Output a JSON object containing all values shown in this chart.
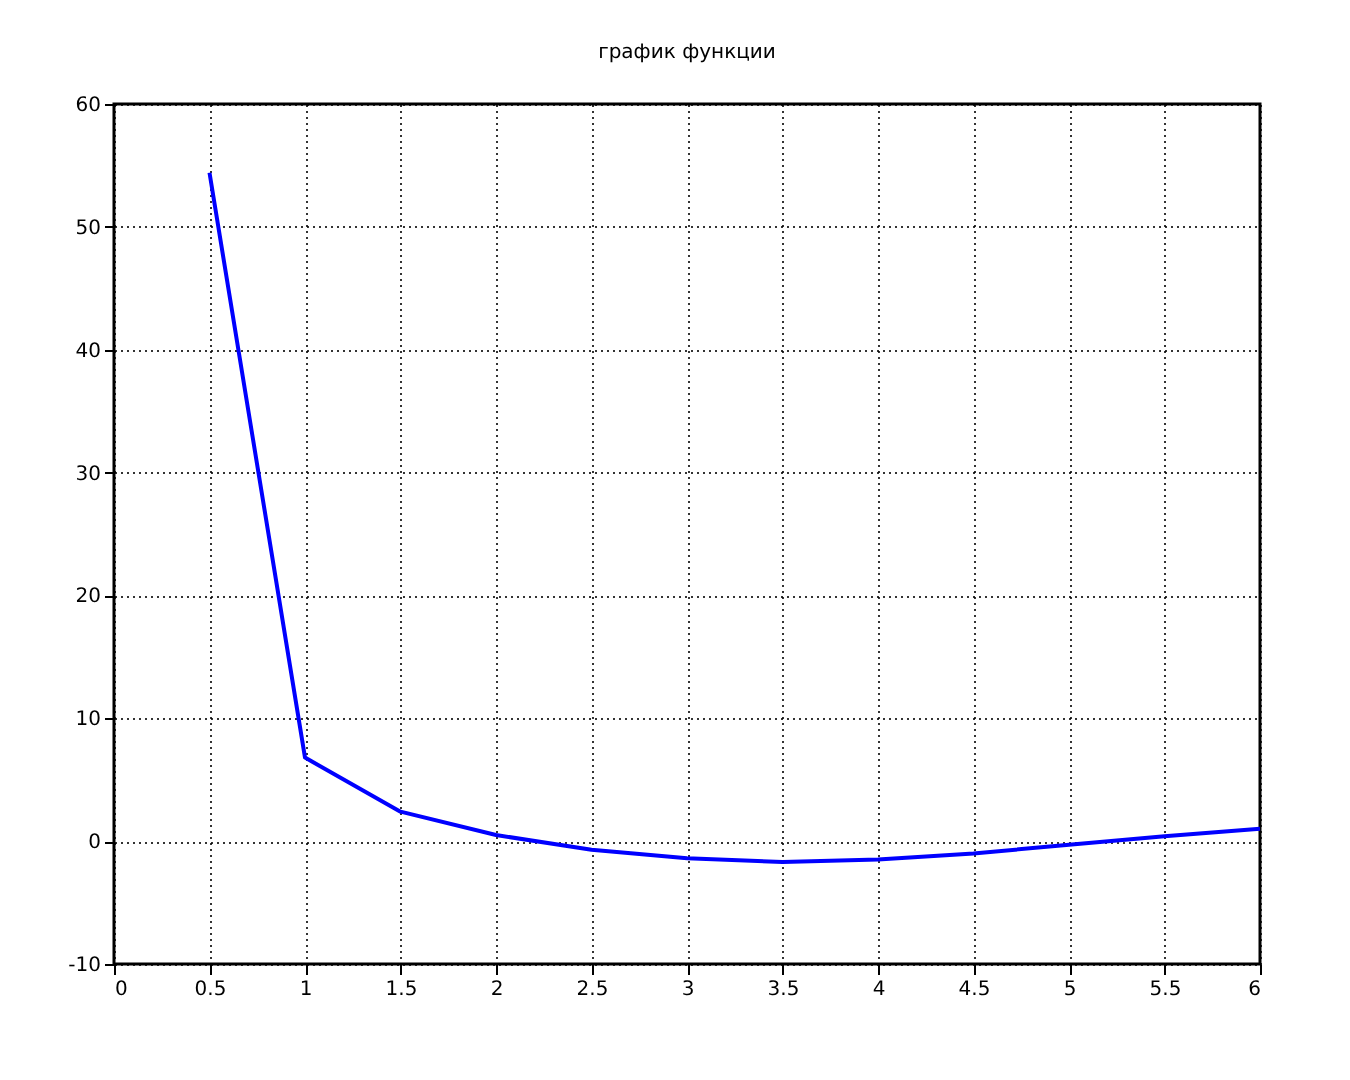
{
  "chart_data": {
    "type": "line",
    "title": "график функции",
    "x": [
      0.5,
      1,
      1.5,
      2,
      2.5,
      3,
      3.5,
      4,
      4.5,
      5,
      5.5,
      6
    ],
    "series": [
      {
        "color": "#0000ff",
        "values": [
          54.4,
          6.8,
          2.4,
          0.5,
          -0.7,
          -1.4,
          -1.7,
          -1.5,
          -1.0,
          -0.3,
          0.4,
          1.0
        ]
      }
    ],
    "xlim": [
      0,
      6
    ],
    "xticks": [
      0,
      0.5,
      1,
      1.5,
      2,
      2.5,
      3,
      3.5,
      4,
      4.5,
      5,
      5.5,
      6
    ],
    "ylim": [
      -10,
      60
    ],
    "yticks": [
      -10,
      0,
      10,
      20,
      30,
      40,
      50,
      60
    ],
    "grid": true,
    "line_style": "solid",
    "marker": "none"
  }
}
